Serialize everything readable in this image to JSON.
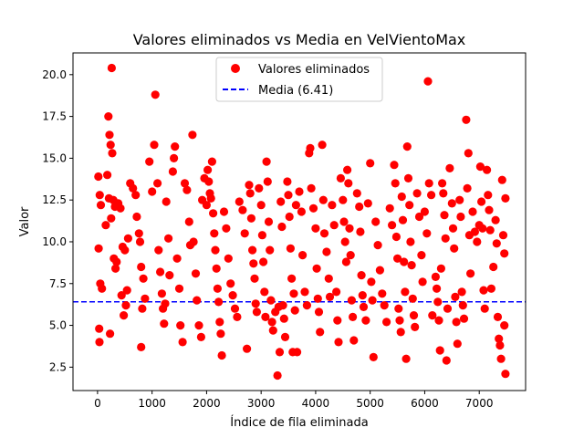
{
  "chart_data": {
    "type": "scatter",
    "title": "Valores eliminados vs Media en VelVientoMax",
    "xlabel": "Índice de fila eliminada",
    "ylabel": "Valor",
    "xlim": [
      -450,
      7850
    ],
    "ylim": [
      1.1,
      21.3
    ],
    "xticks": [
      0,
      1000,
      2000,
      3000,
      4000,
      5000,
      6000,
      7000
    ],
    "yticks": [
      2.5,
      5.0,
      7.5,
      10.0,
      12.5,
      15.0,
      17.5,
      20.0
    ],
    "xtick_labels": [
      "0",
      "1000",
      "2000",
      "3000",
      "4000",
      "5000",
      "6000",
      "7000"
    ],
    "ytick_labels": [
      "2.5",
      "5.0",
      "7.5",
      "10.0",
      "12.5",
      "15.0",
      "17.5",
      "20.0"
    ],
    "legend_position": "upper-center",
    "grid": false,
    "series": [
      {
        "name": "Valores eliminados",
        "kind": "scatter",
        "color": "#ff0000",
        "points": [
          [
            15,
            13.9
          ],
          [
            40,
            12.8
          ],
          [
            60,
            12.2
          ],
          [
            20,
            9.6
          ],
          [
            50,
            7.5
          ],
          [
            80,
            7.2
          ],
          [
            30,
            4.8
          ],
          [
            35,
            4.0
          ],
          [
            180,
            14.0
          ],
          [
            200,
            17.5
          ],
          [
            220,
            16.4
          ],
          [
            240,
            15.8
          ],
          [
            260,
            20.4
          ],
          [
            270,
            15.3
          ],
          [
            290,
            12.5
          ],
          [
            320,
            12.1
          ],
          [
            150,
            11.0
          ],
          [
            210,
            12.6
          ],
          [
            250,
            11.4
          ],
          [
            300,
            9.0
          ],
          [
            330,
            8.4
          ],
          [
            350,
            8.8
          ],
          [
            230,
            4.5
          ],
          [
            380,
            12.3
          ],
          [
            420,
            12.0
          ],
          [
            460,
            9.7
          ],
          [
            500,
            9.5
          ],
          [
            540,
            7.1
          ],
          [
            440,
            6.8
          ],
          [
            480,
            5.6
          ],
          [
            520,
            6.2
          ],
          [
            560,
            10.2
          ],
          [
            600,
            13.5
          ],
          [
            650,
            13.2
          ],
          [
            700,
            12.8
          ],
          [
            720,
            11.5
          ],
          [
            760,
            10.5
          ],
          [
            780,
            10.0
          ],
          [
            800,
            8.5
          ],
          [
            840,
            7.8
          ],
          [
            870,
            6.6
          ],
          [
            820,
            6.0
          ],
          [
            800,
            3.7
          ],
          [
            950,
            14.8
          ],
          [
            1000,
            13.0
          ],
          [
            1040,
            15.8
          ],
          [
            1060,
            18.8
          ],
          [
            1100,
            13.5
          ],
          [
            1120,
            9.5
          ],
          [
            1150,
            8.2
          ],
          [
            1180,
            6.9
          ],
          [
            1200,
            6.0
          ],
          [
            1220,
            5.1
          ],
          [
            1240,
            6.3
          ],
          [
            1260,
            12.4
          ],
          [
            1300,
            10.2
          ],
          [
            1320,
            8.0
          ],
          [
            1380,
            14.2
          ],
          [
            1400,
            15.0
          ],
          [
            1420,
            15.7
          ],
          [
            1460,
            9.0
          ],
          [
            1500,
            7.2
          ],
          [
            1520,
            5.0
          ],
          [
            1560,
            4.0
          ],
          [
            1600,
            13.5
          ],
          [
            1640,
            13.1
          ],
          [
            1680,
            11.2
          ],
          [
            1700,
            9.8
          ],
          [
            1740,
            16.4
          ],
          [
            1760,
            10.0
          ],
          [
            1800,
            8.1
          ],
          [
            1820,
            6.5
          ],
          [
            1860,
            5.0
          ],
          [
            1900,
            4.3
          ],
          [
            1920,
            12.5
          ],
          [
            1960,
            13.8
          ],
          [
            2000,
            12.2
          ],
          [
            2020,
            14.3
          ],
          [
            2040,
            13.6
          ],
          [
            2060,
            12.9
          ],
          [
            2080,
            12.6
          ],
          [
            2100,
            14.8
          ],
          [
            2120,
            11.7
          ],
          [
            2140,
            10.5
          ],
          [
            2160,
            9.5
          ],
          [
            2180,
            8.4
          ],
          [
            2200,
            7.2
          ],
          [
            2220,
            6.4
          ],
          [
            2240,
            5.2
          ],
          [
            2260,
            4.5
          ],
          [
            2280,
            3.2
          ],
          [
            2320,
            11.8
          ],
          [
            2360,
            10.8
          ],
          [
            2400,
            9.0
          ],
          [
            2440,
            7.5
          ],
          [
            2480,
            6.8
          ],
          [
            2520,
            6.0
          ],
          [
            2560,
            5.5
          ],
          [
            2600,
            12.4
          ],
          [
            2660,
            11.9
          ],
          [
            2700,
            10.5
          ],
          [
            2740,
            3.6
          ],
          [
            2780,
            13.4
          ],
          [
            2800,
            12.9
          ],
          [
            2820,
            11.4
          ],
          [
            2840,
            9.5
          ],
          [
            2860,
            8.7
          ],
          [
            2880,
            7.8
          ],
          [
            2900,
            6.3
          ],
          [
            2920,
            5.8
          ],
          [
            2960,
            13.2
          ],
          [
            3000,
            12.2
          ],
          [
            3020,
            10.4
          ],
          [
            3040,
            8.8
          ],
          [
            3060,
            7.0
          ],
          [
            3080,
            5.5
          ],
          [
            3100,
            14.8
          ],
          [
            3120,
            13.6
          ],
          [
            3140,
            11.2
          ],
          [
            3160,
            9.5
          ],
          [
            3180,
            6.5
          ],
          [
            3200,
            5.2
          ],
          [
            3220,
            4.7
          ],
          [
            3260,
            5.8
          ],
          [
            3300,
            2.0
          ],
          [
            3320,
            6.1
          ],
          [
            3340,
            3.4
          ],
          [
            3360,
            12.4
          ],
          [
            3380,
            10.9
          ],
          [
            3400,
            6.2
          ],
          [
            3420,
            5.4
          ],
          [
            3440,
            4.3
          ],
          [
            3480,
            13.6
          ],
          [
            3500,
            12.8
          ],
          [
            3520,
            11.5
          ],
          [
            3540,
            9.6
          ],
          [
            3560,
            7.8
          ],
          [
            3580,
            3.4
          ],
          [
            3600,
            6.9
          ],
          [
            3620,
            5.9
          ],
          [
            3640,
            12.2
          ],
          [
            3660,
            3.4
          ],
          [
            3700,
            13.0
          ],
          [
            3740,
            11.8
          ],
          [
            3760,
            9.2
          ],
          [
            3800,
            7.0
          ],
          [
            3840,
            6.2
          ],
          [
            3880,
            15.3
          ],
          [
            3900,
            15.6
          ],
          [
            3920,
            13.2
          ],
          [
            3960,
            12.0
          ],
          [
            4000,
            10.8
          ],
          [
            4020,
            8.4
          ],
          [
            4040,
            6.6
          ],
          [
            4060,
            5.8
          ],
          [
            4080,
            4.6
          ],
          [
            4120,
            15.8
          ],
          [
            4140,
            12.5
          ],
          [
            4160,
            10.5
          ],
          [
            4200,
            9.4
          ],
          [
            4240,
            7.8
          ],
          [
            4260,
            6.7
          ],
          [
            4300,
            12.2
          ],
          [
            4340,
            11.0
          ],
          [
            4380,
            7.0
          ],
          [
            4400,
            5.3
          ],
          [
            4420,
            4.0
          ],
          [
            4460,
            13.8
          ],
          [
            4500,
            12.5
          ],
          [
            4520,
            11.2
          ],
          [
            4540,
            10.0
          ],
          [
            4560,
            8.8
          ],
          [
            4580,
            14.3
          ],
          [
            4600,
            13.5
          ],
          [
            4620,
            10.8
          ],
          [
            4640,
            9.2
          ],
          [
            4660,
            6.5
          ],
          [
            4680,
            5.5
          ],
          [
            4700,
            4.1
          ],
          [
            4760,
            12.9
          ],
          [
            4800,
            12.1
          ],
          [
            4820,
            10.6
          ],
          [
            4840,
            8.0
          ],
          [
            4860,
            6.8
          ],
          [
            4880,
            6.1
          ],
          [
            4920,
            5.3
          ],
          [
            4960,
            12.3
          ],
          [
            5000,
            14.7
          ],
          [
            5020,
            7.6
          ],
          [
            5040,
            6.5
          ],
          [
            5060,
            3.1
          ],
          [
            5100,
            11.2
          ],
          [
            5140,
            9.8
          ],
          [
            5180,
            8.3
          ],
          [
            5220,
            6.9
          ],
          [
            5260,
            6.2
          ],
          [
            5300,
            5.2
          ],
          [
            5360,
            12.0
          ],
          [
            5400,
            11.0
          ],
          [
            5440,
            14.6
          ],
          [
            5460,
            13.5
          ],
          [
            5480,
            10.3
          ],
          [
            5500,
            9.0
          ],
          [
            5520,
            6.0
          ],
          [
            5540,
            5.3
          ],
          [
            5560,
            4.6
          ],
          [
            5580,
            12.7
          ],
          [
            5600,
            11.3
          ],
          [
            5620,
            8.8
          ],
          [
            5640,
            7.0
          ],
          [
            5660,
            3.0
          ],
          [
            5680,
            15.7
          ],
          [
            5700,
            13.8
          ],
          [
            5720,
            12.2
          ],
          [
            5740,
            10.0
          ],
          [
            5760,
            8.6
          ],
          [
            5780,
            6.6
          ],
          [
            5800,
            5.6
          ],
          [
            5820,
            4.9
          ],
          [
            5860,
            12.9
          ],
          [
            5900,
            11.5
          ],
          [
            5940,
            9.2
          ],
          [
            5960,
            7.6
          ],
          [
            6000,
            11.8
          ],
          [
            6040,
            10.5
          ],
          [
            6060,
            19.6
          ],
          [
            6080,
            13.5
          ],
          [
            6120,
            12.8
          ],
          [
            6140,
            5.6
          ],
          [
            6200,
            7.9
          ],
          [
            6220,
            7.2
          ],
          [
            6240,
            6.4
          ],
          [
            6260,
            5.3
          ],
          [
            6280,
            3.5
          ],
          [
            6300,
            8.4
          ],
          [
            6320,
            13.5
          ],
          [
            6340,
            12.9
          ],
          [
            6360,
            11.6
          ],
          [
            6380,
            10.2
          ],
          [
            6400,
            2.9
          ],
          [
            6420,
            6.0
          ],
          [
            6460,
            14.4
          ],
          [
            6500,
            12.3
          ],
          [
            6520,
            10.8
          ],
          [
            6540,
            9.6
          ],
          [
            6560,
            6.7
          ],
          [
            6580,
            5.2
          ],
          [
            6600,
            3.9
          ],
          [
            6640,
            12.5
          ],
          [
            6660,
            11.5
          ],
          [
            6680,
            7.0
          ],
          [
            6700,
            6.2
          ],
          [
            6720,
            5.4
          ],
          [
            6760,
            17.3
          ],
          [
            6780,
            13.2
          ],
          [
            6800,
            15.3
          ],
          [
            6820,
            10.4
          ],
          [
            6840,
            8.1
          ],
          [
            6880,
            11.8
          ],
          [
            6920,
            10.6
          ],
          [
            6960,
            10.0
          ],
          [
            7000,
            11.0
          ],
          [
            7020,
            14.5
          ],
          [
            7040,
            12.4
          ],
          [
            7060,
            10.8
          ],
          [
            7080,
            7.1
          ],
          [
            7100,
            6.0
          ],
          [
            7140,
            14.3
          ],
          [
            7160,
            12.8
          ],
          [
            7180,
            11.9
          ],
          [
            7200,
            10.7
          ],
          [
            7220,
            7.2
          ],
          [
            7260,
            8.5
          ],
          [
            7300,
            11.3
          ],
          [
            7320,
            9.9
          ],
          [
            7340,
            5.5
          ],
          [
            7360,
            4.2
          ],
          [
            7380,
            3.8
          ],
          [
            7400,
            3.0
          ],
          [
            7420,
            13.7
          ],
          [
            7440,
            10.4
          ],
          [
            7460,
            9.3
          ],
          [
            7480,
            12.6
          ],
          [
            7460,
            5.0
          ],
          [
            7480,
            2.1
          ]
        ]
      },
      {
        "name": "Media (6.41)",
        "kind": "hline",
        "color": "#0000ff",
        "y": 6.41
      }
    ]
  }
}
